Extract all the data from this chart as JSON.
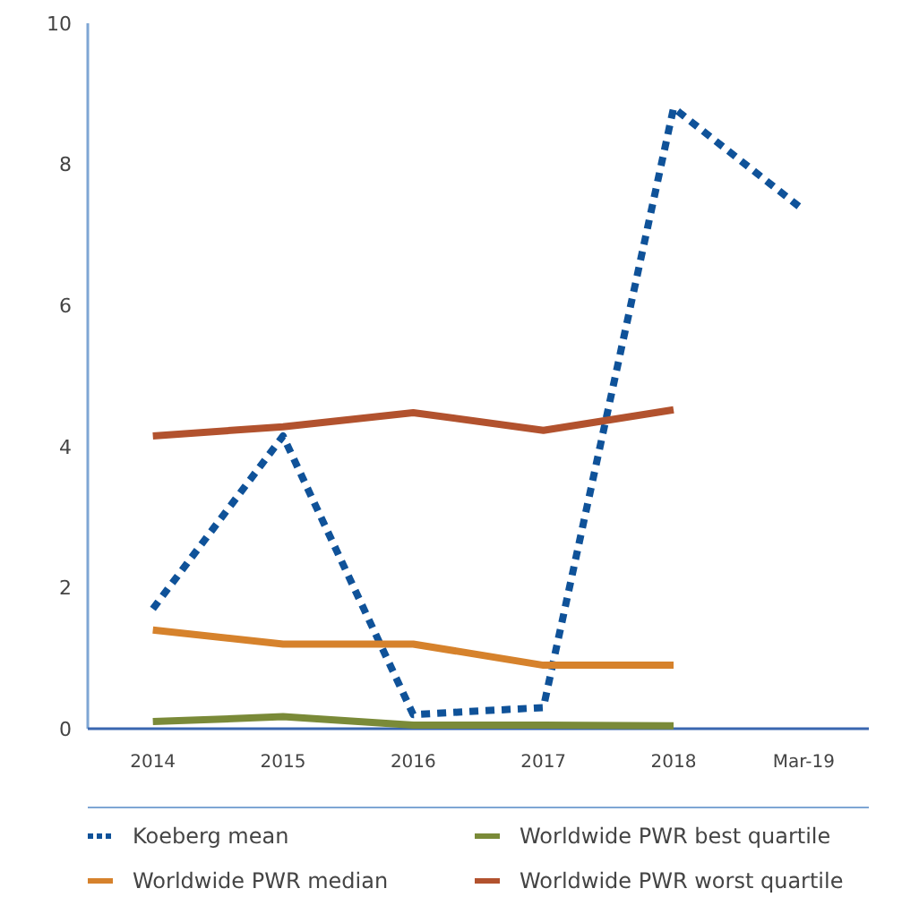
{
  "chart_data": {
    "type": "line",
    "categories": [
      "2014",
      "2015",
      "2016",
      "2017",
      "2018",
      "Mar-19"
    ],
    "series": [
      {
        "name": "Koeberg mean",
        "color": "#0f5299",
        "values": [
          1.7,
          4.15,
          0.2,
          0.3,
          8.8,
          7.35
        ],
        "line_style": "dotted"
      },
      {
        "name": "Worldwide PWR best quartile",
        "color": "#7a8a38",
        "values": [
          0.1,
          0.17,
          0.05,
          0.05,
          0.04,
          null
        ]
      },
      {
        "name": "Worldwide PWR median",
        "color": "#d6822c",
        "values": [
          1.4,
          1.2,
          1.2,
          0.9,
          0.9,
          null
        ]
      },
      {
        "name": "Worldwide PWR worst quartile",
        "color": "#b2522e",
        "values": [
          4.15,
          4.28,
          4.48,
          4.23,
          4.52,
          null
        ]
      }
    ],
    "ylim": [
      0,
      10
    ],
    "yticks": [
      0,
      2,
      4,
      6,
      8,
      10
    ],
    "grid": false,
    "legend": "bottom",
    "marker": "none",
    "line_style": "solid"
  }
}
